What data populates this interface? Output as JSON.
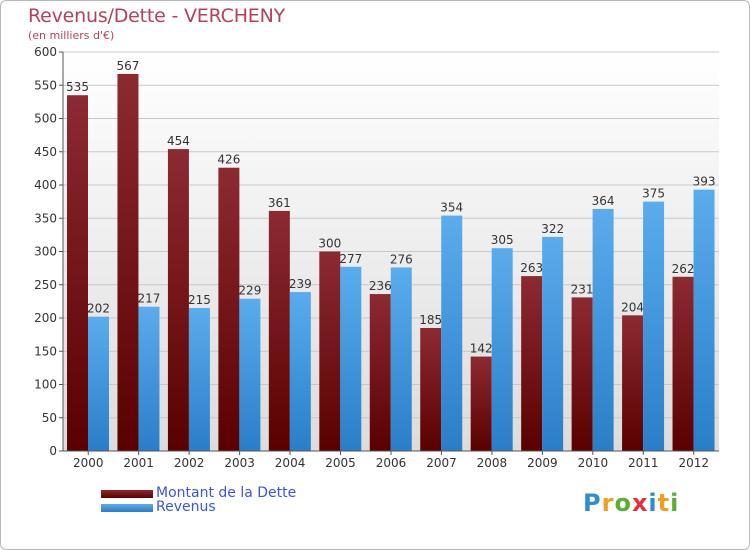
{
  "title": "Revenus/Dette - VERCHENY",
  "subtitle": "(en milliers d'€)",
  "logo": {
    "text": "Proxiti",
    "letters": [
      {
        "ch": "P",
        "color": "#2e8fd0"
      },
      {
        "ch": "r",
        "color": "#f0a020"
      },
      {
        "ch": "o",
        "color": "#5ab030"
      },
      {
        "ch": "x",
        "color": "#e03040"
      },
      {
        "ch": "i",
        "color": "#2e8fd0"
      },
      {
        "ch": "t",
        "color": "#f0a020"
      },
      {
        "ch": "i",
        "color": "#5ab030"
      }
    ]
  },
  "colors": {
    "dette_top": "#8c2a32",
    "dette_bottom": "#5a0000",
    "revenus_top": "#5aacec",
    "revenus_bottom": "#2a7ec8",
    "legend_text": "#3a55e0",
    "title_text": "#b4405a"
  },
  "chart_data": {
    "type": "bar",
    "title": "Revenus/Dette - VERCHENY",
    "subtitle": "(en milliers d'€)",
    "categories": [
      "2000",
      "2001",
      "2002",
      "2003",
      "2004",
      "2005",
      "2006",
      "2007",
      "2008",
      "2009",
      "2010",
      "2011",
      "2012"
    ],
    "series": [
      {
        "name": "Montant de la Dette",
        "values": [
          535,
          567,
          454,
          426,
          361,
          300,
          236,
          185,
          142,
          263,
          231,
          204,
          262
        ]
      },
      {
        "name": "Revenus",
        "values": [
          202,
          217,
          215,
          229,
          239,
          277,
          276,
          354,
          305,
          322,
          364,
          375,
          393
        ]
      }
    ],
    "ylim": [
      0,
      600
    ],
    "yticks": [
      0,
      50,
      100,
      150,
      200,
      250,
      300,
      350,
      400,
      450,
      500,
      550,
      600
    ],
    "grid": true,
    "legend": "bottom-left"
  }
}
